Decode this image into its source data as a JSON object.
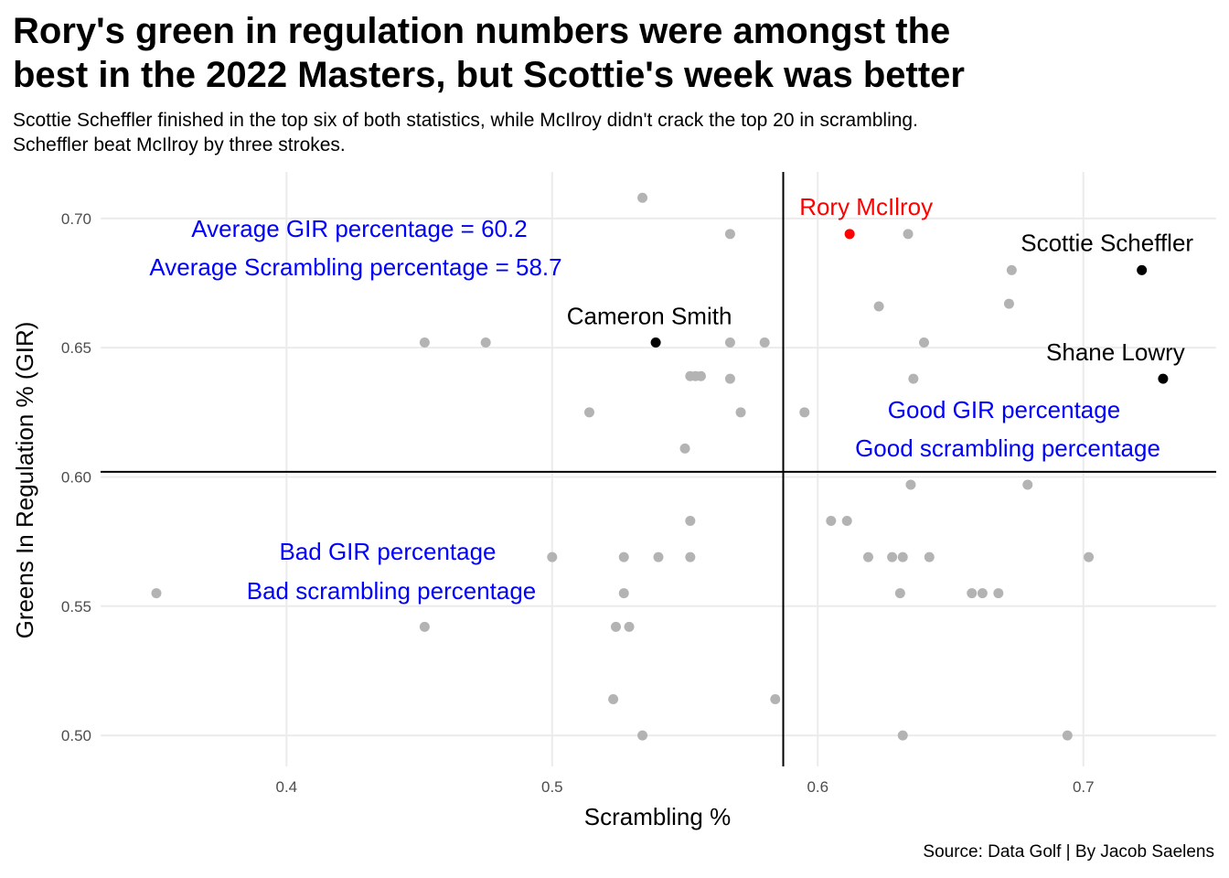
{
  "title_line1": "Rory's green in regulation numbers were amongst the",
  "title_line2": "best in the 2022 Masters, but Scottie's week was better",
  "subtitle_line1": "Scottie Scheffler finished in the top six of both statistics, while McIlroy didn't crack the top 20 in scrambling.",
  "subtitle_line2": "Scheffler beat McIlroy by three strokes.",
  "caption": "Source: Data Golf | By Jacob Saelens",
  "colors": {
    "background_points": "#b3b3b3",
    "highlight": "#000000",
    "mcilroy": "#ff0000",
    "annotation": "#0000ff",
    "gridline": "#ebebeb"
  },
  "chart_data": {
    "type": "scatter",
    "xlabel": "Scrambling %",
    "ylabel": "Greens In Regulation % (GIR)",
    "xlim": [
      0.33,
      0.75
    ],
    "ylim": [
      0.488,
      0.718
    ],
    "x_ticks": [
      0.4,
      0.5,
      0.6,
      0.7
    ],
    "x_tick_labels": [
      "0.4",
      "0.5",
      "0.6",
      "0.7"
    ],
    "y_ticks": [
      0.5,
      0.55,
      0.6,
      0.65,
      0.7
    ],
    "y_tick_labels": [
      "0.50",
      "0.55",
      "0.60",
      "0.65",
      "0.70"
    ],
    "grid": true,
    "reference_lines": {
      "vertical_x": 0.587,
      "horizontal_y": 0.602
    },
    "points": [
      {
        "x": 0.534,
        "y": 0.708
      },
      {
        "x": 0.567,
        "y": 0.694
      },
      {
        "x": 0.634,
        "y": 0.694
      },
      {
        "x": 0.673,
        "y": 0.68
      },
      {
        "x": 0.672,
        "y": 0.667
      },
      {
        "x": 0.623,
        "y": 0.666
      },
      {
        "x": 0.452,
        "y": 0.652
      },
      {
        "x": 0.475,
        "y": 0.652
      },
      {
        "x": 0.567,
        "y": 0.652
      },
      {
        "x": 0.58,
        "y": 0.652
      },
      {
        "x": 0.64,
        "y": 0.652
      },
      {
        "x": 0.552,
        "y": 0.639
      },
      {
        "x": 0.554,
        "y": 0.639
      },
      {
        "x": 0.556,
        "y": 0.639
      },
      {
        "x": 0.567,
        "y": 0.638
      },
      {
        "x": 0.636,
        "y": 0.638
      },
      {
        "x": 0.514,
        "y": 0.625
      },
      {
        "x": 0.571,
        "y": 0.625
      },
      {
        "x": 0.595,
        "y": 0.625
      },
      {
        "x": 0.55,
        "y": 0.611
      },
      {
        "x": 0.635,
        "y": 0.597
      },
      {
        "x": 0.679,
        "y": 0.597
      },
      {
        "x": 0.552,
        "y": 0.583
      },
      {
        "x": 0.605,
        "y": 0.583
      },
      {
        "x": 0.611,
        "y": 0.583
      },
      {
        "x": 0.5,
        "y": 0.569
      },
      {
        "x": 0.527,
        "y": 0.569
      },
      {
        "x": 0.54,
        "y": 0.569
      },
      {
        "x": 0.552,
        "y": 0.569
      },
      {
        "x": 0.619,
        "y": 0.569
      },
      {
        "x": 0.628,
        "y": 0.569
      },
      {
        "x": 0.632,
        "y": 0.569
      },
      {
        "x": 0.642,
        "y": 0.569
      },
      {
        "x": 0.702,
        "y": 0.569
      },
      {
        "x": 0.351,
        "y": 0.555
      },
      {
        "x": 0.527,
        "y": 0.555
      },
      {
        "x": 0.631,
        "y": 0.555
      },
      {
        "x": 0.658,
        "y": 0.555
      },
      {
        "x": 0.662,
        "y": 0.555
      },
      {
        "x": 0.668,
        "y": 0.555
      },
      {
        "x": 0.452,
        "y": 0.542
      },
      {
        "x": 0.524,
        "y": 0.542
      },
      {
        "x": 0.529,
        "y": 0.542
      },
      {
        "x": 0.523,
        "y": 0.514
      },
      {
        "x": 0.584,
        "y": 0.514
      },
      {
        "x": 0.534,
        "y": 0.5
      },
      {
        "x": 0.632,
        "y": 0.5
      },
      {
        "x": 0.694,
        "y": 0.5
      }
    ],
    "highlighted": [
      {
        "label": "Rory McIlroy",
        "x": 0.612,
        "y": 0.694,
        "color": "#ff0000"
      },
      {
        "label": "Scottie Scheffler",
        "x": 0.722,
        "y": 0.68,
        "color": "#000000"
      },
      {
        "label": "Cameron Smith",
        "x": 0.539,
        "y": 0.652,
        "color": "#000000"
      },
      {
        "label": "Shane Lowry",
        "x": 0.73,
        "y": 0.638,
        "color": "#000000"
      }
    ],
    "annotations": {
      "average_gir": "Average GIR percentage = 60.2",
      "average_scrambling": "Average Scrambling percentage = 58.7",
      "good_gir": "Good GIR percentage",
      "good_scrambling": "Good scrambling percentage",
      "bad_gir": "Bad GIR percentage",
      "bad_scrambling": "Bad scrambling percentage"
    }
  }
}
